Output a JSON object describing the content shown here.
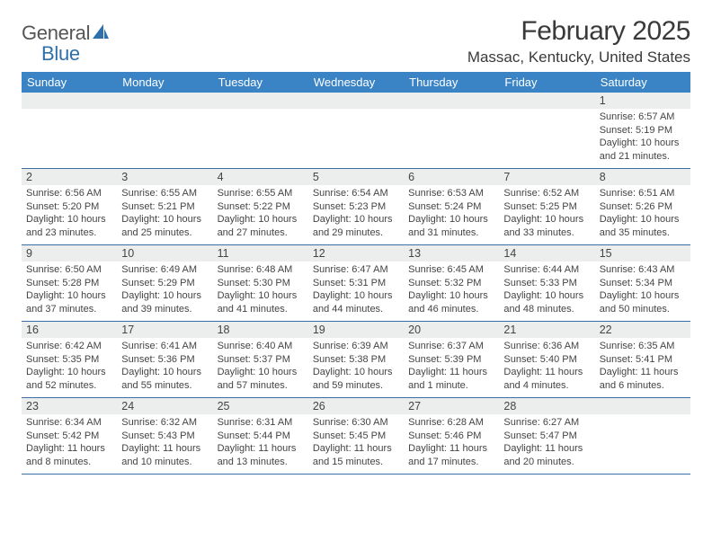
{
  "brand": {
    "part1": "General",
    "part2": "Blue",
    "accent": "#2f6faa"
  },
  "title": "February 2025",
  "location": "Massac, Kentucky, United States",
  "header_bg": "#3a83c5",
  "daynum_bg": "#eceded",
  "rule_color": "#3a6ea5",
  "day_names": [
    "Sunday",
    "Monday",
    "Tuesday",
    "Wednesday",
    "Thursday",
    "Friday",
    "Saturday"
  ],
  "weeks": [
    [
      {
        "n": "",
        "sunrise": "",
        "sunset": "",
        "daylight": ""
      },
      {
        "n": "",
        "sunrise": "",
        "sunset": "",
        "daylight": ""
      },
      {
        "n": "",
        "sunrise": "",
        "sunset": "",
        "daylight": ""
      },
      {
        "n": "",
        "sunrise": "",
        "sunset": "",
        "daylight": ""
      },
      {
        "n": "",
        "sunrise": "",
        "sunset": "",
        "daylight": ""
      },
      {
        "n": "",
        "sunrise": "",
        "sunset": "",
        "daylight": ""
      },
      {
        "n": "1",
        "sunrise": "Sunrise: 6:57 AM",
        "sunset": "Sunset: 5:19 PM",
        "daylight": "Daylight: 10 hours and 21 minutes."
      }
    ],
    [
      {
        "n": "2",
        "sunrise": "Sunrise: 6:56 AM",
        "sunset": "Sunset: 5:20 PM",
        "daylight": "Daylight: 10 hours and 23 minutes."
      },
      {
        "n": "3",
        "sunrise": "Sunrise: 6:55 AM",
        "sunset": "Sunset: 5:21 PM",
        "daylight": "Daylight: 10 hours and 25 minutes."
      },
      {
        "n": "4",
        "sunrise": "Sunrise: 6:55 AM",
        "sunset": "Sunset: 5:22 PM",
        "daylight": "Daylight: 10 hours and 27 minutes."
      },
      {
        "n": "5",
        "sunrise": "Sunrise: 6:54 AM",
        "sunset": "Sunset: 5:23 PM",
        "daylight": "Daylight: 10 hours and 29 minutes."
      },
      {
        "n": "6",
        "sunrise": "Sunrise: 6:53 AM",
        "sunset": "Sunset: 5:24 PM",
        "daylight": "Daylight: 10 hours and 31 minutes."
      },
      {
        "n": "7",
        "sunrise": "Sunrise: 6:52 AM",
        "sunset": "Sunset: 5:25 PM",
        "daylight": "Daylight: 10 hours and 33 minutes."
      },
      {
        "n": "8",
        "sunrise": "Sunrise: 6:51 AM",
        "sunset": "Sunset: 5:26 PM",
        "daylight": "Daylight: 10 hours and 35 minutes."
      }
    ],
    [
      {
        "n": "9",
        "sunrise": "Sunrise: 6:50 AM",
        "sunset": "Sunset: 5:28 PM",
        "daylight": "Daylight: 10 hours and 37 minutes."
      },
      {
        "n": "10",
        "sunrise": "Sunrise: 6:49 AM",
        "sunset": "Sunset: 5:29 PM",
        "daylight": "Daylight: 10 hours and 39 minutes."
      },
      {
        "n": "11",
        "sunrise": "Sunrise: 6:48 AM",
        "sunset": "Sunset: 5:30 PM",
        "daylight": "Daylight: 10 hours and 41 minutes."
      },
      {
        "n": "12",
        "sunrise": "Sunrise: 6:47 AM",
        "sunset": "Sunset: 5:31 PM",
        "daylight": "Daylight: 10 hours and 44 minutes."
      },
      {
        "n": "13",
        "sunrise": "Sunrise: 6:45 AM",
        "sunset": "Sunset: 5:32 PM",
        "daylight": "Daylight: 10 hours and 46 minutes."
      },
      {
        "n": "14",
        "sunrise": "Sunrise: 6:44 AM",
        "sunset": "Sunset: 5:33 PM",
        "daylight": "Daylight: 10 hours and 48 minutes."
      },
      {
        "n": "15",
        "sunrise": "Sunrise: 6:43 AM",
        "sunset": "Sunset: 5:34 PM",
        "daylight": "Daylight: 10 hours and 50 minutes."
      }
    ],
    [
      {
        "n": "16",
        "sunrise": "Sunrise: 6:42 AM",
        "sunset": "Sunset: 5:35 PM",
        "daylight": "Daylight: 10 hours and 52 minutes."
      },
      {
        "n": "17",
        "sunrise": "Sunrise: 6:41 AM",
        "sunset": "Sunset: 5:36 PM",
        "daylight": "Daylight: 10 hours and 55 minutes."
      },
      {
        "n": "18",
        "sunrise": "Sunrise: 6:40 AM",
        "sunset": "Sunset: 5:37 PM",
        "daylight": "Daylight: 10 hours and 57 minutes."
      },
      {
        "n": "19",
        "sunrise": "Sunrise: 6:39 AM",
        "sunset": "Sunset: 5:38 PM",
        "daylight": "Daylight: 10 hours and 59 minutes."
      },
      {
        "n": "20",
        "sunrise": "Sunrise: 6:37 AM",
        "sunset": "Sunset: 5:39 PM",
        "daylight": "Daylight: 11 hours and 1 minute."
      },
      {
        "n": "21",
        "sunrise": "Sunrise: 6:36 AM",
        "sunset": "Sunset: 5:40 PM",
        "daylight": "Daylight: 11 hours and 4 minutes."
      },
      {
        "n": "22",
        "sunrise": "Sunrise: 6:35 AM",
        "sunset": "Sunset: 5:41 PM",
        "daylight": "Daylight: 11 hours and 6 minutes."
      }
    ],
    [
      {
        "n": "23",
        "sunrise": "Sunrise: 6:34 AM",
        "sunset": "Sunset: 5:42 PM",
        "daylight": "Daylight: 11 hours and 8 minutes."
      },
      {
        "n": "24",
        "sunrise": "Sunrise: 6:32 AM",
        "sunset": "Sunset: 5:43 PM",
        "daylight": "Daylight: 11 hours and 10 minutes."
      },
      {
        "n": "25",
        "sunrise": "Sunrise: 6:31 AM",
        "sunset": "Sunset: 5:44 PM",
        "daylight": "Daylight: 11 hours and 13 minutes."
      },
      {
        "n": "26",
        "sunrise": "Sunrise: 6:30 AM",
        "sunset": "Sunset: 5:45 PM",
        "daylight": "Daylight: 11 hours and 15 minutes."
      },
      {
        "n": "27",
        "sunrise": "Sunrise: 6:28 AM",
        "sunset": "Sunset: 5:46 PM",
        "daylight": "Daylight: 11 hours and 17 minutes."
      },
      {
        "n": "28",
        "sunrise": "Sunrise: 6:27 AM",
        "sunset": "Sunset: 5:47 PM",
        "daylight": "Daylight: 11 hours and 20 minutes."
      },
      {
        "n": "",
        "sunrise": "",
        "sunset": "",
        "daylight": ""
      }
    ]
  ]
}
